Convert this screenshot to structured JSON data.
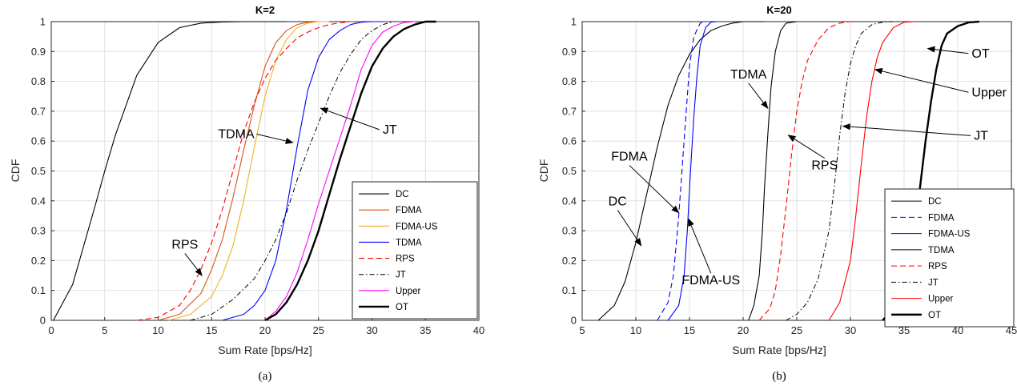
{
  "chart_data": [
    {
      "type": "line",
      "title": "K=2",
      "subcaption": "(a)",
      "xlabel": "Sum Rate [bps/Hz]",
      "ylabel": "CDF",
      "xlim": [
        0,
        40
      ],
      "ylim": [
        0,
        1
      ],
      "xticks": [
        0,
        5,
        10,
        15,
        20,
        25,
        30,
        35,
        40
      ],
      "yticks": [
        0,
        0.1,
        0.2,
        0.3,
        0.4,
        0.5,
        0.6,
        0.7,
        0.8,
        0.9,
        1
      ],
      "grid": true,
      "legend_position": "bottom-right",
      "series": [
        {
          "name": "DC",
          "color": "#000000",
          "dash": "solid",
          "width": 1.1,
          "x": [
            0.2,
            2,
            4,
            5,
            6,
            8,
            10,
            12,
            14,
            16,
            18,
            20,
            22
          ],
          "y": [
            0,
            0.12,
            0.37,
            0.5,
            0.62,
            0.82,
            0.93,
            0.98,
            0.995,
            0.999,
            1,
            1,
            1
          ]
        },
        {
          "name": "FDMA",
          "color": "#d95319",
          "dash": "solid",
          "width": 1.1,
          "x": [
            10,
            12,
            14,
            15,
            16,
            17,
            18,
            19,
            20,
            21,
            22,
            23,
            24,
            25
          ],
          "y": [
            0,
            0.02,
            0.09,
            0.17,
            0.27,
            0.41,
            0.57,
            0.72,
            0.85,
            0.93,
            0.97,
            0.99,
            0.998,
            1
          ]
        },
        {
          "name": "FDMA-US",
          "color": "#edb120",
          "dash": "solid",
          "width": 1.1,
          "x": [
            11,
            13,
            15,
            16,
            17,
            18,
            19,
            20,
            21,
            22,
            23,
            24,
            25,
            26
          ],
          "y": [
            0,
            0.02,
            0.08,
            0.15,
            0.25,
            0.4,
            0.58,
            0.75,
            0.87,
            0.94,
            0.98,
            0.995,
            1,
            1
          ]
        },
        {
          "name": "TDMA",
          "color": "#0000ff",
          "dash": "solid",
          "width": 1.1,
          "x": [
            16,
            18,
            19,
            20,
            21,
            22,
            23,
            24,
            25,
            26,
            27,
            28,
            29,
            30,
            31
          ],
          "y": [
            0,
            0.02,
            0.05,
            0.1,
            0.2,
            0.37,
            0.58,
            0.77,
            0.88,
            0.94,
            0.97,
            0.99,
            0.998,
            1,
            1
          ]
        },
        {
          "name": "RPS",
          "color": "#ff0000",
          "dash": "dashed",
          "width": 1.1,
          "x": [
            8,
            10,
            12,
            13,
            14,
            15,
            16,
            17,
            18,
            19,
            20,
            21,
            22,
            23,
            24,
            25,
            26,
            27,
            28,
            29
          ],
          "y": [
            0,
            0.01,
            0.05,
            0.1,
            0.17,
            0.26,
            0.37,
            0.5,
            0.63,
            0.73,
            0.81,
            0.87,
            0.91,
            0.945,
            0.965,
            0.98,
            0.99,
            0.996,
            1,
            1
          ]
        },
        {
          "name": "JT",
          "color": "#000000",
          "dash": "dashdot",
          "width": 1.0,
          "x": [
            13,
            15,
            17,
            19,
            20,
            21,
            22,
            23,
            24,
            25,
            26,
            27,
            28,
            29,
            30,
            31,
            32
          ],
          "y": [
            0,
            0.02,
            0.07,
            0.14,
            0.2,
            0.27,
            0.36,
            0.47,
            0.57,
            0.66,
            0.75,
            0.83,
            0.89,
            0.94,
            0.97,
            0.99,
            1
          ]
        },
        {
          "name": "Upper",
          "color": "#ff00ff",
          "dash": "solid",
          "width": 1.1,
          "x": [
            20,
            21,
            22,
            23,
            24,
            25,
            26,
            27,
            28,
            29,
            30,
            31,
            32,
            33,
            34
          ],
          "y": [
            0,
            0.03,
            0.08,
            0.16,
            0.27,
            0.39,
            0.5,
            0.61,
            0.72,
            0.84,
            0.92,
            0.965,
            0.985,
            0.997,
            1
          ]
        },
        {
          "name": "OT",
          "color": "#000000",
          "dash": "solid",
          "width": 2.4,
          "x": [
            20,
            21,
            22,
            23,
            24,
            25,
            26,
            27,
            28,
            29,
            30,
            31,
            32,
            33,
            34,
            35,
            36
          ],
          "y": [
            0,
            0.02,
            0.06,
            0.12,
            0.2,
            0.3,
            0.42,
            0.54,
            0.65,
            0.76,
            0.85,
            0.91,
            0.95,
            0.975,
            0.99,
            1,
            1
          ]
        }
      ],
      "annotations": [
        {
          "text": "TDMA",
          "tx": 19,
          "ty": 0.61,
          "ax": 22.6,
          "ay": 0.595,
          "anchor": "end"
        },
        {
          "text": "JT",
          "tx": 31,
          "ty": 0.625,
          "ax": 25.2,
          "ay": 0.71,
          "anchor": "start"
        },
        {
          "text": "RPS",
          "tx": 12.5,
          "ty": 0.24,
          "ax": 14.1,
          "ay": 0.15,
          "anchor": "middle"
        }
      ]
    },
    {
      "type": "line",
      "title": "K=20",
      "subcaption": "(b)",
      "xlabel": "Sum Rate [bps/Hz]",
      "ylabel": "CDF",
      "xlim": [
        5,
        45
      ],
      "ylim": [
        0,
        1
      ],
      "xticks": [
        5,
        10,
        15,
        20,
        25,
        30,
        35,
        40,
        45
      ],
      "yticks": [
        0,
        0.1,
        0.2,
        0.3,
        0.4,
        0.5,
        0.6,
        0.7,
        0.8,
        0.9,
        1
      ],
      "grid": true,
      "legend_position": "bottom-right",
      "series": [
        {
          "name": "DC",
          "color": "#000000",
          "dash": "solid",
          "width": 1.1,
          "x": [
            6.5,
            8,
            9,
            10,
            11,
            12,
            13,
            14,
            15,
            16,
            17,
            18,
            19,
            20,
            22
          ],
          "y": [
            0,
            0.05,
            0.13,
            0.26,
            0.42,
            0.58,
            0.72,
            0.82,
            0.89,
            0.94,
            0.97,
            0.985,
            0.995,
            1,
            1
          ]
        },
        {
          "name": "FDMA",
          "color": "#0000ff",
          "dash": "dashed",
          "width": 1.1,
          "x": [
            12,
            13,
            13.5,
            14,
            14.3,
            14.6,
            15,
            15.4,
            16,
            16.5
          ],
          "y": [
            0,
            0.06,
            0.15,
            0.35,
            0.5,
            0.65,
            0.85,
            0.95,
            0.995,
            1
          ]
        },
        {
          "name": "FDMA-US",
          "color": "#0000ff",
          "dash": "solid",
          "width": 1.1,
          "x": [
            13,
            14,
            14.5,
            14.8,
            15.1,
            15.4,
            15.7,
            16,
            16.5,
            17,
            17.5
          ],
          "y": [
            0,
            0.05,
            0.15,
            0.3,
            0.5,
            0.68,
            0.82,
            0.92,
            0.98,
            0.998,
            1
          ]
        },
        {
          "name": "TDMA",
          "color": "#000000",
          "dash": "solid",
          "width": 1.1,
          "x": [
            20.5,
            21,
            21.5,
            21.8,
            22,
            22.3,
            22.6,
            23,
            23.5,
            24,
            25
          ],
          "y": [
            0,
            0.05,
            0.15,
            0.3,
            0.45,
            0.62,
            0.78,
            0.9,
            0.97,
            0.995,
            1
          ]
        },
        {
          "name": "RPS",
          "color": "#ff0000",
          "dash": "dashed",
          "width": 1.1,
          "x": [
            21.5,
            22.5,
            23,
            23.5,
            24,
            24.5,
            25,
            25.5,
            26,
            27,
            28,
            29,
            30
          ],
          "y": [
            0,
            0.04,
            0.1,
            0.22,
            0.38,
            0.55,
            0.7,
            0.8,
            0.87,
            0.94,
            0.98,
            0.995,
            1
          ]
        },
        {
          "name": "JT",
          "color": "#000000",
          "dash": "dashdot",
          "width": 1.0,
          "x": [
            24,
            25,
            26,
            27,
            28,
            28.5,
            29,
            29.5,
            30,
            30.5,
            31,
            32,
            33,
            34
          ],
          "y": [
            0,
            0.02,
            0.06,
            0.14,
            0.3,
            0.45,
            0.62,
            0.76,
            0.86,
            0.92,
            0.96,
            0.99,
            0.998,
            1
          ]
        },
        {
          "name": "Upper",
          "color": "#ff0000",
          "dash": "solid",
          "width": 1.1,
          "x": [
            28,
            29,
            30,
            30.5,
            31,
            31.5,
            32,
            32.5,
            33,
            34,
            35,
            36
          ],
          "y": [
            0,
            0.06,
            0.2,
            0.35,
            0.52,
            0.68,
            0.8,
            0.88,
            0.93,
            0.98,
            0.998,
            1
          ]
        },
        {
          "name": "OT",
          "color": "#000000",
          "dash": "solid",
          "width": 2.4,
          "x": [
            33,
            34,
            35,
            36,
            36.5,
            37,
            37.5,
            38,
            38.5,
            39,
            40,
            41,
            42
          ],
          "y": [
            0,
            0.04,
            0.14,
            0.32,
            0.45,
            0.6,
            0.73,
            0.84,
            0.92,
            0.96,
            0.985,
            0.997,
            1
          ]
        }
      ],
      "annotations": [
        {
          "text": "TDMA",
          "tx": 20.5,
          "ty": 0.81,
          "ax": 22.3,
          "ay": 0.71,
          "anchor": "middle"
        },
        {
          "text": "FDMA",
          "tx": 9.4,
          "ty": 0.535,
          "ax": 14,
          "ay": 0.36,
          "anchor": "middle"
        },
        {
          "text": "DC",
          "tx": 8.3,
          "ty": 0.385,
          "ax": 10.5,
          "ay": 0.25,
          "anchor": "middle"
        },
        {
          "text": "FDMA-US",
          "tx": 17,
          "ty": 0.12,
          "ax": 14.9,
          "ay": 0.34,
          "anchor": "middle"
        },
        {
          "text": "RPS",
          "tx": 27.6,
          "ty": 0.505,
          "ax": 24.2,
          "ay": 0.62,
          "anchor": "middle"
        },
        {
          "text": "OT",
          "tx": 41.3,
          "ty": 0.88,
          "ax": 37.2,
          "ay": 0.91,
          "anchor": "start"
        },
        {
          "text": "Upper",
          "tx": 41.3,
          "ty": 0.75,
          "ax": 32.3,
          "ay": 0.84,
          "anchor": "start"
        },
        {
          "text": "JT",
          "tx": 41.5,
          "ty": 0.605,
          "ax": 29.3,
          "ay": 0.65,
          "anchor": "start"
        }
      ]
    }
  ]
}
